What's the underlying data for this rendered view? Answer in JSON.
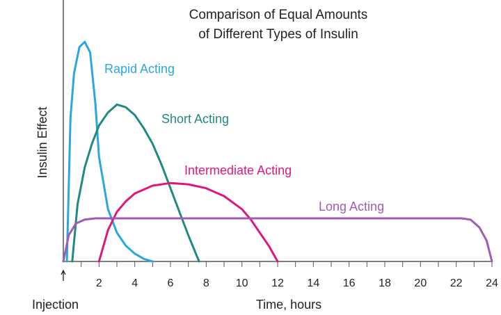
{
  "chart_data": {
    "type": "line",
    "title": [
      "Comparison of Equal Amounts",
      "of Different Types of Insulin"
    ],
    "x_label": "Time, hours",
    "y_label": "Insulin Effect",
    "annotation": {
      "text": "Injection",
      "x": 0
    },
    "xlim": [
      0,
      24
    ],
    "ylim": [
      0,
      100
    ],
    "xticks": [
      2,
      4,
      6,
      8,
      10,
      12,
      14,
      16,
      18,
      20,
      22,
      24
    ],
    "minor_xticks": [
      1,
      3,
      5,
      7,
      9,
      11,
      13,
      15,
      17,
      19,
      21,
      23
    ],
    "series": [
      {
        "name": "Rapid Acting",
        "color": "#2aa7df",
        "x": [
          0.2,
          0.4,
          0.6,
          0.9,
          1.2,
          1.5,
          1.8,
          2.0,
          2.5,
          3,
          3.5,
          4,
          4.5,
          5
        ],
        "values": [
          0,
          55,
          72,
          82,
          84,
          80,
          60,
          40,
          20,
          11,
          6,
          3,
          1,
          0
        ]
      },
      {
        "name": "Short Acting",
        "color": "#1f8a80",
        "x": [
          0.5,
          0.8,
          1.2,
          1.6,
          2,
          2.5,
          3,
          3.5,
          4,
          4.5,
          5,
          5.5,
          6,
          6.5,
          7,
          7.6
        ],
        "values": [
          0,
          22,
          36,
          45,
          52,
          57,
          60,
          59,
          56,
          51,
          45,
          37,
          28,
          19,
          10,
          0
        ]
      },
      {
        "name": "Intermediate Acting",
        "color": "#e0177a",
        "x": [
          2,
          2.5,
          3,
          3.5,
          4,
          5,
          6,
          7,
          8,
          9,
          10,
          10.5,
          11,
          11.5,
          12
        ],
        "values": [
          0,
          12,
          19,
          23,
          26,
          29,
          30,
          29.5,
          28,
          25,
          20,
          16,
          11,
          6,
          0
        ]
      },
      {
        "name": "Long Acting",
        "color": "#a05bb5",
        "x": [
          0,
          0.3,
          0.7,
          1.2,
          1.8,
          22.3,
          22.8,
          23.3,
          23.7,
          24
        ],
        "values": [
          0,
          10,
          14.5,
          16,
          16.5,
          16.5,
          16,
          13,
          8,
          0
        ]
      }
    ]
  }
}
